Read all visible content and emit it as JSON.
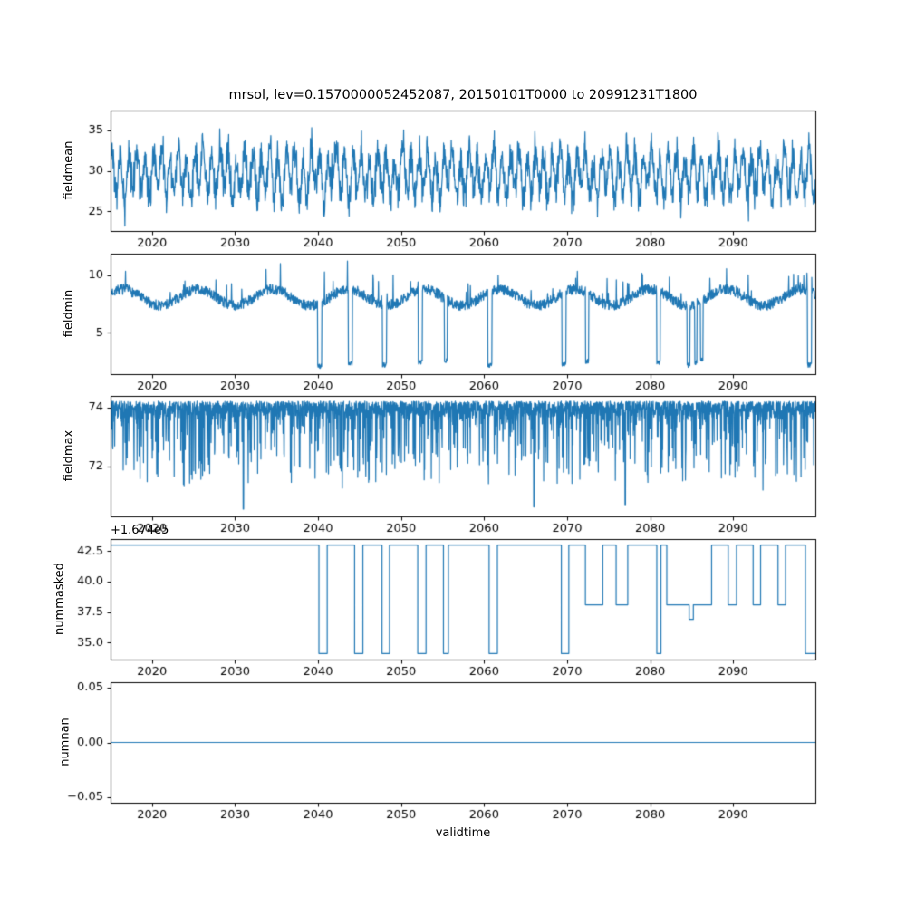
{
  "figure": {
    "title": "mrsol, lev=0.1570000052452087, 20150101T0000 to 20991231T1800",
    "xlabel": "validtime",
    "line_color": "#1f77b4",
    "axes_color": "#000000",
    "background": "#ffffff"
  },
  "chart_data": [
    {
      "name": "fieldmean",
      "type": "line",
      "ylabel": "fieldmean",
      "ylim": [
        22.6,
        37.4
      ],
      "yticks": [
        25,
        30,
        35
      ],
      "ytick_labels": [
        "25",
        "30",
        "35"
      ],
      "xlim": [
        2015,
        2099.9
      ],
      "xticks": [
        2020,
        2030,
        2040,
        2050,
        2060,
        2070,
        2080,
        2090
      ],
      "xtick_labels": [
        "2020",
        "2030",
        "2040",
        "2050",
        "2060",
        "2070",
        "2080",
        "2090"
      ],
      "series": {
        "kind": "noisy_seasonal",
        "base": 29.6,
        "seasonal_amp": 2.4,
        "second_amp": 0.9,
        "noise_amp": 1.7,
        "clip": [
          23.1,
          37.5
        ],
        "points_per_year": 26,
        "seed": 42
      }
    },
    {
      "name": "fieldmin",
      "type": "line",
      "ylabel": "fieldmin",
      "ylim": [
        1.4,
        11.9
      ],
      "yticks": [
        5,
        10
      ],
      "ytick_labels": [
        "5",
        "10"
      ],
      "xlim": [
        2015,
        2099.9
      ],
      "xticks": [
        2020,
        2030,
        2040,
        2050,
        2060,
        2070,
        2080,
        2090
      ],
      "xtick_labels": [
        "2020",
        "2030",
        "2040",
        "2050",
        "2060",
        "2070",
        "2080",
        "2090"
      ],
      "series": {
        "kind": "baseline_dips",
        "base": 8.1,
        "slow_amp": 0.7,
        "noise_amp": 0.45,
        "bump_prob": 0.03,
        "bump_amp": 2.4,
        "points_per_year": 26,
        "seed": 7,
        "dips": [
          {
            "x": 2040.2,
            "v": 1.9,
            "w": 0.5
          },
          {
            "x": 2043.9,
            "v": 2.1,
            "w": 0.5
          },
          {
            "x": 2048.0,
            "v": 2.0,
            "w": 0.5
          },
          {
            "x": 2052.3,
            "v": 2.2,
            "w": 0.5
          },
          {
            "x": 2055.4,
            "v": 2.4,
            "w": 0.35
          },
          {
            "x": 2060.7,
            "v": 2.0,
            "w": 0.5
          },
          {
            "x": 2069.6,
            "v": 2.1,
            "w": 0.5
          },
          {
            "x": 2072.4,
            "v": 2.3,
            "w": 0.4
          },
          {
            "x": 2081.0,
            "v": 2.2,
            "w": 0.4
          },
          {
            "x": 2084.6,
            "v": 2.0,
            "w": 0.35
          },
          {
            "x": 2085.5,
            "v": 2.2,
            "w": 0.3
          },
          {
            "x": 2086.2,
            "v": 2.4,
            "w": 0.3
          },
          {
            "x": 2099.2,
            "v": 2.0,
            "w": 0.5
          }
        ]
      }
    },
    {
      "name": "fieldmax",
      "type": "line",
      "ylabel": "fieldmax",
      "ylim": [
        70.3,
        74.4
      ],
      "yticks": [
        72,
        74
      ],
      "ytick_labels": [
        "72",
        "74"
      ],
      "xlim": [
        2015,
        2099.9
      ],
      "xticks": [
        2020,
        2030,
        2040,
        2050,
        2060,
        2070,
        2080,
        2090
      ],
      "xtick_labels": [
        "2020",
        "2030",
        "2040",
        "2050",
        "2060",
        "2070",
        "2080",
        "2090"
      ],
      "series": {
        "kind": "ceiling_spikes",
        "base": 74.22,
        "noise_amp": 0.45,
        "spike_prob": 0.28,
        "spike_extra": 2.6,
        "clip_top": 74.26,
        "points_per_year": 36,
        "seed": 11,
        "deep_dips": [
          {
            "x": 2031.0,
            "v": 70.55
          },
          {
            "x": 2066.0,
            "v": 70.62
          },
          {
            "x": 2077.0,
            "v": 70.7
          }
        ]
      }
    },
    {
      "name": "nummasked",
      "type": "line",
      "ylabel": "nummasked",
      "offset_text": "+1.674e5",
      "ylim": [
        33.6,
        43.5
      ],
      "yticks": [
        35.0,
        37.5,
        40.0,
        42.5
      ],
      "ytick_labels": [
        "35.0",
        "37.5",
        "40.0",
        "42.5"
      ],
      "xlim": [
        2015,
        2099.9
      ],
      "xticks": [
        2020,
        2030,
        2040,
        2050,
        2060,
        2070,
        2080,
        2090
      ],
      "xtick_labels": [
        "2020",
        "2030",
        "2040",
        "2050",
        "2060",
        "2070",
        "2080",
        "2090"
      ],
      "series": {
        "kind": "steps",
        "segments": [
          [
            2015.0,
            2040.1,
            43.0
          ],
          [
            2040.1,
            2041.1,
            34.1
          ],
          [
            2041.1,
            2044.4,
            43.0
          ],
          [
            2044.4,
            2045.4,
            34.1
          ],
          [
            2045.4,
            2047.7,
            43.0
          ],
          [
            2047.7,
            2048.6,
            34.1
          ],
          [
            2048.6,
            2052.0,
            43.0
          ],
          [
            2052.0,
            2053.0,
            34.1
          ],
          [
            2053.0,
            2055.1,
            43.0
          ],
          [
            2055.1,
            2055.7,
            34.1
          ],
          [
            2055.7,
            2060.6,
            43.0
          ],
          [
            2060.6,
            2061.6,
            34.1
          ],
          [
            2061.6,
            2069.3,
            43.0
          ],
          [
            2069.3,
            2070.2,
            34.1
          ],
          [
            2070.2,
            2072.2,
            43.0
          ],
          [
            2072.2,
            2074.3,
            38.1
          ],
          [
            2074.3,
            2075.9,
            43.0
          ],
          [
            2075.9,
            2077.3,
            38.1
          ],
          [
            2077.3,
            2080.8,
            43.0
          ],
          [
            2080.8,
            2081.3,
            34.1
          ],
          [
            2081.3,
            2082.0,
            43.0
          ],
          [
            2082.0,
            2084.7,
            38.1
          ],
          [
            2084.7,
            2085.2,
            36.9
          ],
          [
            2085.2,
            2087.4,
            38.1
          ],
          [
            2087.4,
            2089.4,
            43.0
          ],
          [
            2089.4,
            2090.4,
            38.1
          ],
          [
            2090.4,
            2092.4,
            43.0
          ],
          [
            2092.4,
            2093.3,
            38.1
          ],
          [
            2093.3,
            2095.4,
            43.0
          ],
          [
            2095.4,
            2096.3,
            38.1
          ],
          [
            2096.3,
            2098.7,
            43.0
          ],
          [
            2098.7,
            2099.9,
            34.1
          ]
        ]
      }
    },
    {
      "name": "numnan",
      "type": "line",
      "ylabel": "numnan",
      "ylim": [
        -0.055,
        0.055
      ],
      "yticks": [
        -0.05,
        0.0,
        0.05
      ],
      "ytick_labels": [
        "−0.05",
        "0.00",
        "0.05"
      ],
      "xlim": [
        2015,
        2099.9
      ],
      "xticks": [
        2020,
        2030,
        2040,
        2050,
        2060,
        2070,
        2080,
        2090
      ],
      "xtick_labels": [
        "2020",
        "2030",
        "2040",
        "2050",
        "2060",
        "2070",
        "2080",
        "2090"
      ],
      "series": {
        "kind": "constant",
        "value": 0
      }
    }
  ]
}
